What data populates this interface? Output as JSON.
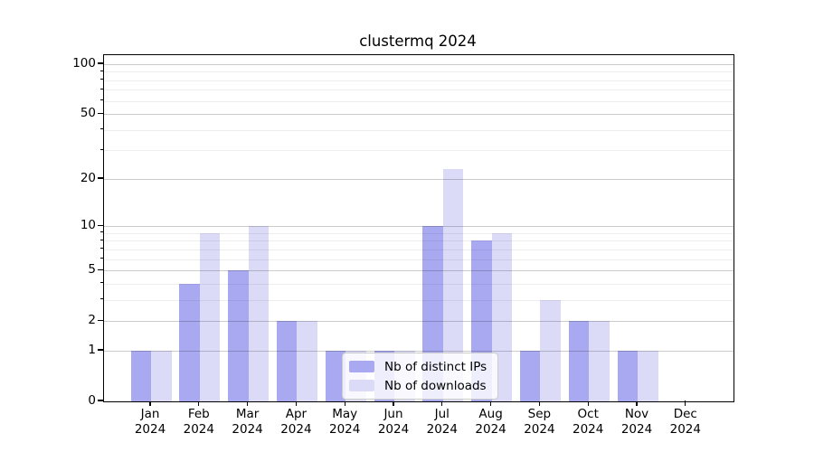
{
  "title": "clustermq 2024",
  "legend": {
    "items": [
      {
        "label": "Nb of distinct IPs"
      },
      {
        "label": "Nb of downloads"
      }
    ]
  },
  "chart_data": {
    "type": "bar",
    "title": "clustermq 2024",
    "categories": [
      "Jan",
      "Feb",
      "Mar",
      "Apr",
      "May",
      "Jun",
      "Jul",
      "Aug",
      "Sep",
      "Oct",
      "Nov",
      "Dec"
    ],
    "x_year": "2024",
    "series": [
      {
        "name": "Nb of distinct IPs",
        "color": "#a9a9f1",
        "values": [
          1,
          4,
          5,
          2,
          1,
          1,
          10,
          8,
          1,
          2,
          1,
          0
        ]
      },
      {
        "name": "Nb of downloads",
        "color": "#dbdbf7",
        "values": [
          1,
          9,
          10,
          2,
          1,
          1,
          23,
          9,
          3,
          2,
          1,
          0
        ]
      }
    ],
    "y_scale": "log1p",
    "ylim": [
      0,
      115
    ],
    "y_ticks": [
      0,
      1,
      2,
      5,
      10,
      20,
      50,
      100
    ],
    "y_minor_ticks": [
      3,
      4,
      6,
      7,
      8,
      9,
      30,
      40,
      60,
      70,
      80,
      90
    ],
    "grid": "major and minor horizontal gridlines, drawn above bars",
    "legend_position": "inside lower-center",
    "colors": {
      "bar_distinct_ips": "#a9a9f1",
      "bar_downloads": "#dbdbf7",
      "major_grid": "#cccccc",
      "minor_grid": "#ededed",
      "axis": "#000000",
      "legend_border": "#cccccc",
      "background": "#ffffff"
    }
  }
}
